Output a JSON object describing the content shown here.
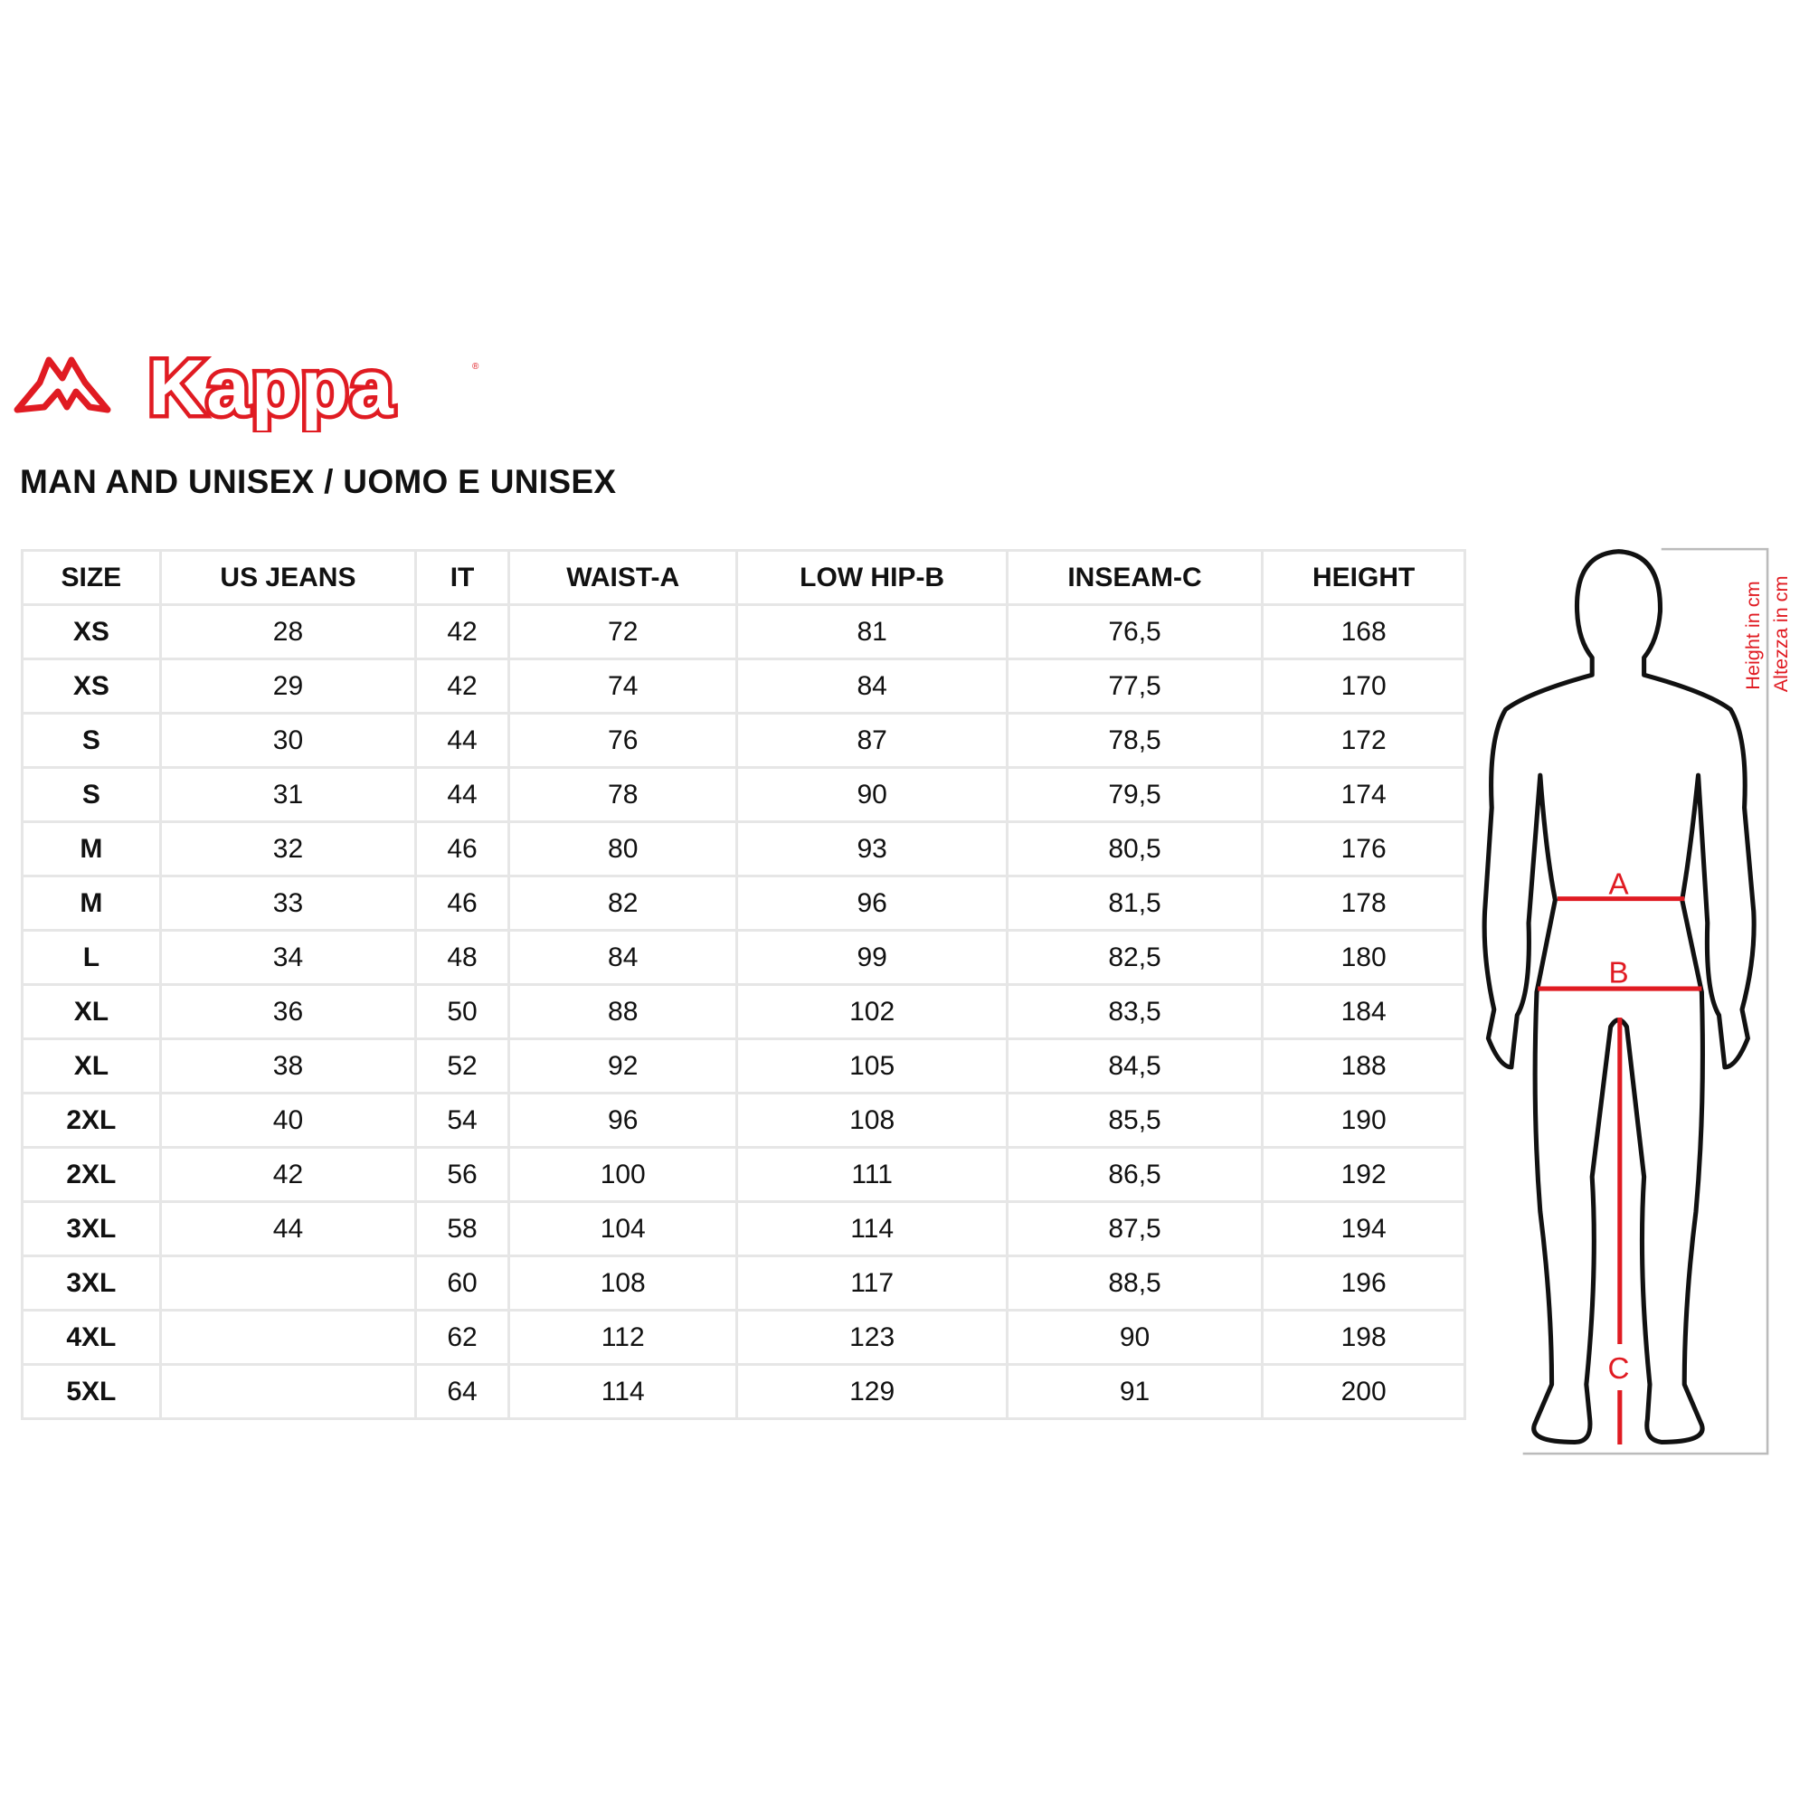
{
  "brand": {
    "logo_text": "Kappa"
  },
  "title": "MAN AND UNISEX / UOMO E UNISEX",
  "table": {
    "headers": [
      "SIZE",
      "US JEANS",
      "IT",
      "WAIST-A",
      "LOW HIP-B",
      "INSEAM-C",
      "HEIGHT"
    ],
    "rows": [
      [
        "XS",
        "28",
        "42",
        "72",
        "81",
        "76,5",
        "168"
      ],
      [
        "XS",
        "29",
        "42",
        "74",
        "84",
        "77,5",
        "170"
      ],
      [
        "S",
        "30",
        "44",
        "76",
        "87",
        "78,5",
        "172"
      ],
      [
        "S",
        "31",
        "44",
        "78",
        "90",
        "79,5",
        "174"
      ],
      [
        "M",
        "32",
        "46",
        "80",
        "93",
        "80,5",
        "176"
      ],
      [
        "M",
        "33",
        "46",
        "82",
        "96",
        "81,5",
        "178"
      ],
      [
        "L",
        "34",
        "48",
        "84",
        "99",
        "82,5",
        "180"
      ],
      [
        "XL",
        "36",
        "50",
        "88",
        "102",
        "83,5",
        "184"
      ],
      [
        "XL",
        "38",
        "52",
        "92",
        "105",
        "84,5",
        "188"
      ],
      [
        "2XL",
        "40",
        "54",
        "96",
        "108",
        "85,5",
        "190"
      ],
      [
        "2XL",
        "42",
        "56",
        "100",
        "111",
        "86,5",
        "192"
      ],
      [
        "3XL",
        "44",
        "58",
        "104",
        "114",
        "87,5",
        "194"
      ],
      [
        "3XL",
        "",
        "60",
        "108",
        "117",
        "88,5",
        "196"
      ],
      [
        "4XL",
        "",
        "62",
        "112",
        "123",
        "90",
        "198"
      ],
      [
        "5XL",
        "",
        "64",
        "114",
        "129",
        "91",
        "200"
      ]
    ]
  },
  "figure": {
    "label_a": "A",
    "label_b": "B",
    "label_c": "C",
    "height_en": "Height in cm",
    "height_it": "Altezza in cm"
  },
  "colors": {
    "accent": "#e01b22",
    "grid": "#e6e6e6"
  }
}
